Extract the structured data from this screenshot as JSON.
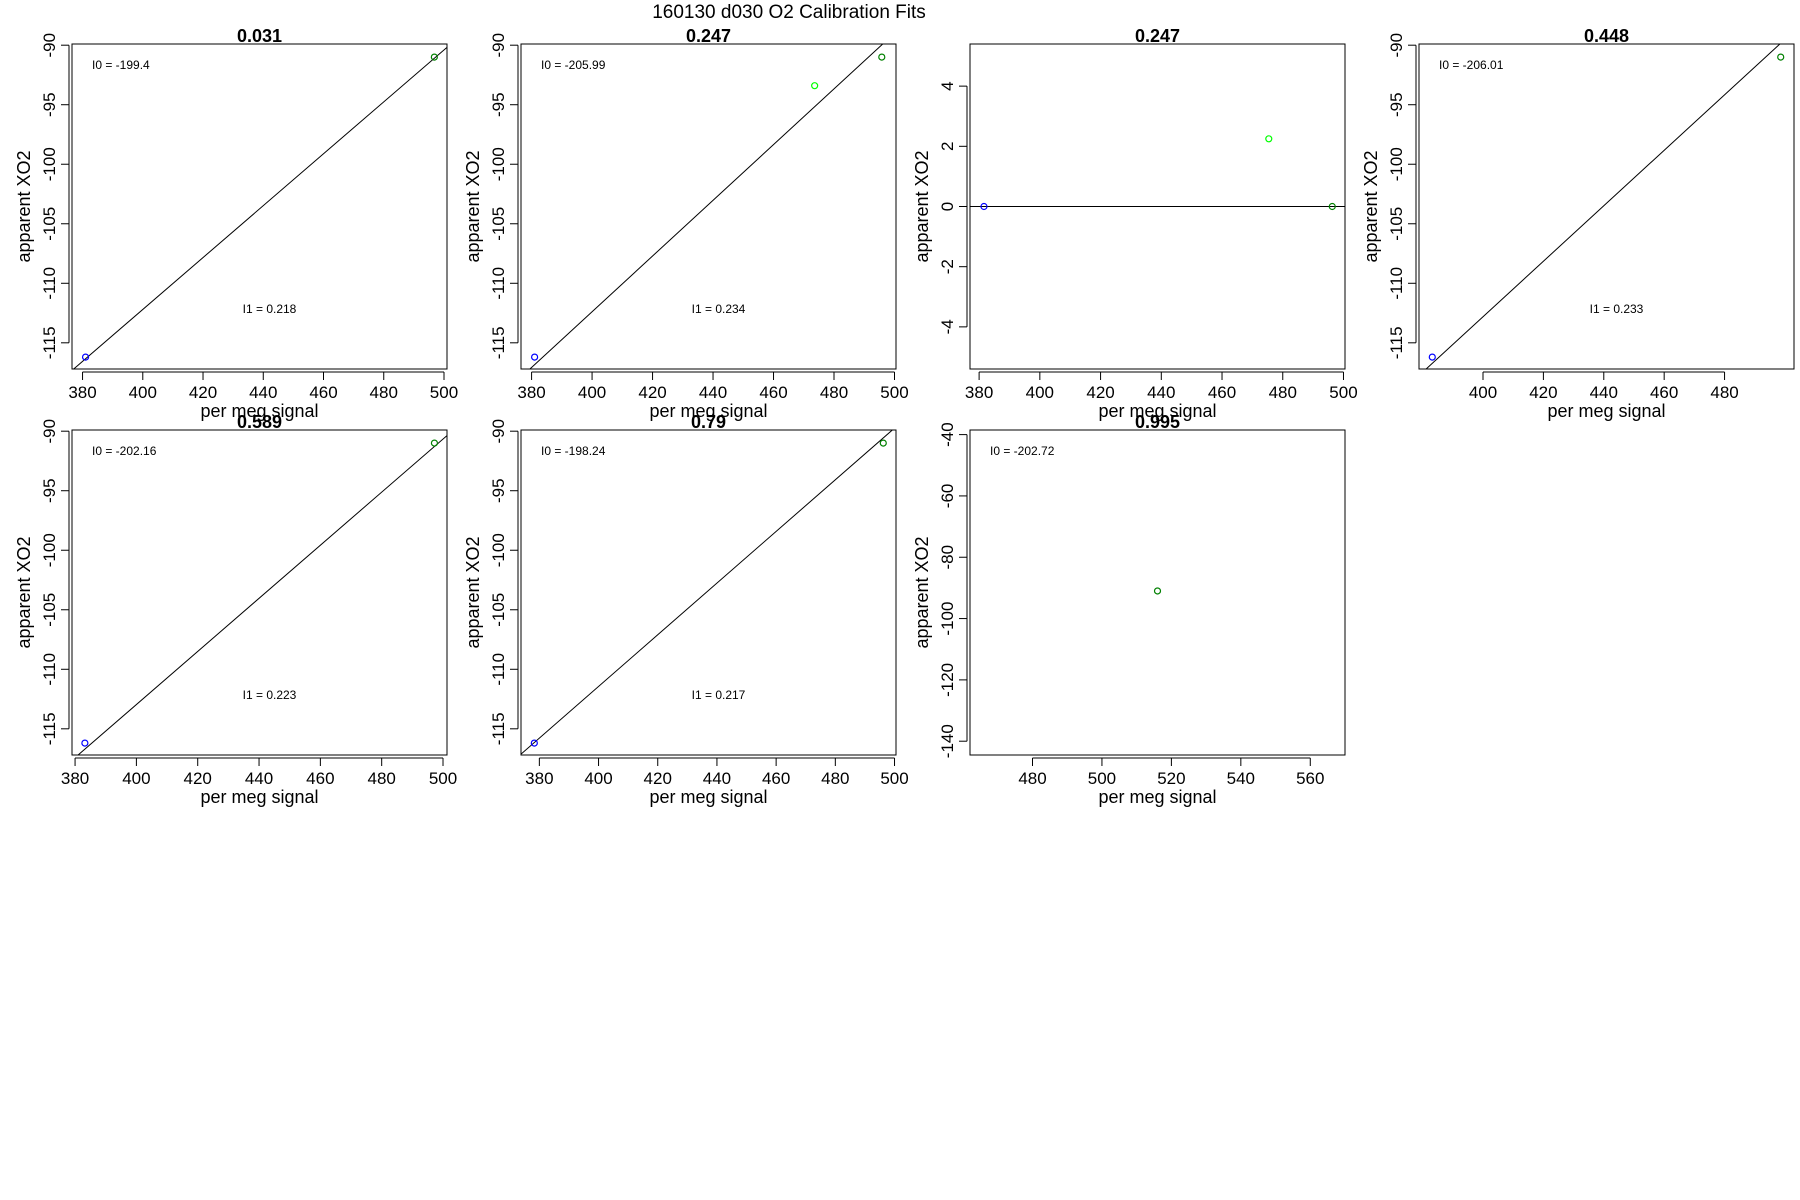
{
  "figure_title": "160130   d030   O2 Calibration Fits",
  "chart_data": [
    {
      "type": "scatter",
      "title": "0.031",
      "xlabel": "per meg signal",
      "ylabel": "apparent XO2",
      "xlim": [
        376.5,
        501
      ],
      "ylim": [
        -117.2,
        -89.9
      ],
      "xticks": [
        380,
        400,
        420,
        440,
        460,
        480,
        500
      ],
      "yticks": [
        -115,
        -110,
        -105,
        -100,
        -95,
        -90
      ],
      "points": [
        {
          "x": 381.0,
          "y": -116.2,
          "color": "#0000ff"
        },
        {
          "x": 496.8,
          "y": -91.0,
          "color": "#008000"
        }
      ],
      "fit_line": {
        "intercept": -199.4,
        "slope": 0.218
      },
      "annotations": {
        "i0": "I0 =  -199.4",
        "i1": "I1 =  0.218"
      }
    },
    {
      "type": "scatter",
      "title": "0.247",
      "xlabel": "per meg signal",
      "ylabel": "apparent XO2",
      "xlim": [
        376.5,
        500.5
      ],
      "ylim": [
        -117.2,
        -89.9
      ],
      "xticks": [
        380,
        400,
        420,
        440,
        460,
        480,
        500
      ],
      "yticks": [
        -115,
        -110,
        -105,
        -100,
        -95,
        -90
      ],
      "points": [
        {
          "x": 381.0,
          "y": -116.2,
          "color": "#0000ff"
        },
        {
          "x": 473.6,
          "y": -93.4,
          "color": "#00ff00"
        },
        {
          "x": 495.8,
          "y": -91.0,
          "color": "#008000"
        }
      ],
      "fit_line": {
        "intercept": -205.99,
        "slope": 0.234
      },
      "annotations": {
        "i0": "I0 =  -205.99",
        "i1": "I1 =  0.234"
      }
    },
    {
      "type": "scatter",
      "title": "0.247",
      "xlabel": "per meg signal",
      "ylabel": "apparent XO2",
      "xlim": [
        377,
        500.5
      ],
      "ylim": [
        -5.4,
        5.4
      ],
      "xticks": [
        380,
        400,
        420,
        440,
        460,
        480,
        500
      ],
      "yticks": [
        -4,
        -2,
        0,
        2,
        4
      ],
      "points": [
        {
          "x": 381.6,
          "y": 0.0,
          "color": "#0000ff"
        },
        {
          "x": 475.4,
          "y": 2.25,
          "color": "#00ff00"
        },
        {
          "x": 496.3,
          "y": 0.0,
          "color": "#008000"
        }
      ],
      "fit_line": {
        "intercept": 0.0,
        "slope": 0.0
      },
      "annotations": {}
    },
    {
      "type": "scatter",
      "title": "0.448",
      "xlabel": "per meg signal",
      "ylabel": "apparent XO2",
      "xlim": [
        378.8,
        503
      ],
      "ylim": [
        -117.2,
        -89.9
      ],
      "xticks": [
        400,
        420,
        440,
        460,
        480
      ],
      "yticks": [
        -115,
        -110,
        -105,
        -100,
        -95,
        -90
      ],
      "points": [
        {
          "x": 383.2,
          "y": -116.2,
          "color": "#0000ff"
        },
        {
          "x": 498.6,
          "y": -91.0,
          "color": "#008000"
        }
      ],
      "fit_line": {
        "intercept": -206.01,
        "slope": 0.233
      },
      "annotations": {
        "i0": "I0 =  -206.01",
        "i1": "I1 =  0.233"
      }
    },
    {
      "type": "scatter",
      "title": "0.589",
      "xlabel": "per meg signal",
      "ylabel": "apparent XO2",
      "xlim": [
        379,
        501.3
      ],
      "ylim": [
        -117.2,
        -89.9
      ],
      "xticks": [
        380,
        400,
        420,
        440,
        460,
        480,
        500
      ],
      "yticks": [
        -115,
        -110,
        -105,
        -100,
        -95,
        -90
      ],
      "points": [
        {
          "x": 383.2,
          "y": -116.2,
          "color": "#0000ff"
        },
        {
          "x": 497.2,
          "y": -91.0,
          "color": "#008000"
        }
      ],
      "fit_line": {
        "intercept": -202.16,
        "slope": 0.223
      },
      "annotations": {
        "i0": "I0 =  -202.16",
        "i1": "I1 =  0.223"
      }
    },
    {
      "type": "scatter",
      "title": "0.79",
      "xlabel": "per meg signal",
      "ylabel": "apparent XO2",
      "xlim": [
        373.8,
        500.5
      ],
      "ylim": [
        -117.2,
        -89.9
      ],
      "xticks": [
        380,
        400,
        420,
        440,
        460,
        480,
        500
      ],
      "yticks": [
        -115,
        -110,
        -105,
        -100,
        -95,
        -90
      ],
      "points": [
        {
          "x": 378.3,
          "y": -116.2,
          "color": "#0000ff"
        },
        {
          "x": 496.2,
          "y": -91.0,
          "color": "#008000"
        }
      ],
      "fit_line": {
        "intercept": -198.24,
        "slope": 0.217
      },
      "annotations": {
        "i0": "I0 =  -198.24",
        "i1": "I1 =  0.217"
      }
    },
    {
      "type": "scatter",
      "title": "0.995",
      "xlabel": "per meg signal",
      "ylabel": "apparent XO2",
      "xlim": [
        462,
        570
      ],
      "ylim": [
        -144.5,
        -38.5
      ],
      "xticks": [
        480,
        500,
        520,
        540,
        560
      ],
      "yticks": [
        -140,
        -120,
        -100,
        -80,
        -60,
        -40
      ],
      "points": [
        {
          "x": 516,
          "y": -91.0,
          "color": "#008000"
        }
      ],
      "fit_line": null,
      "annotations": {
        "i0": "I0 =  -202.72"
      }
    }
  ]
}
